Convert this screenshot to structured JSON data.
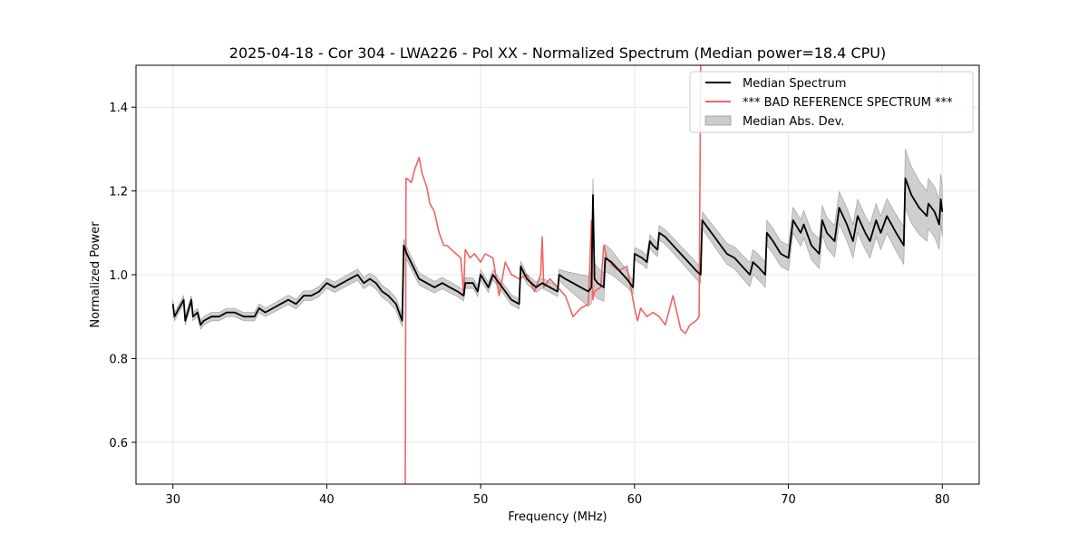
{
  "chart_data": {
    "type": "line",
    "title": "2025-04-18 - Cor 304 - LWA226 - Pol XX - Normalized Spectrum (Median power=18.4 CPU)",
    "xlabel": "Frequency (MHz)",
    "ylabel": "Normalized Power",
    "xlim": [
      27.6,
      82.4
    ],
    "ylim": [
      0.5,
      1.5
    ],
    "xticks": [
      30,
      40,
      50,
      60,
      70,
      80
    ],
    "yticks": [
      0.6,
      0.8,
      1.0,
      1.2,
      1.4
    ],
    "grid": true,
    "legend_location": "top-right",
    "series": [
      {
        "name": "Median Spectrum",
        "color": "#000000",
        "style": "line",
        "x": [
          30.0,
          30.1,
          30.7,
          30.8,
          31.2,
          31.3,
          31.6,
          31.8,
          32.0,
          32.5,
          33.0,
          33.5,
          34.0,
          34.6,
          35.3,
          35.6,
          36.0,
          36.5,
          37.0,
          37.5,
          38.0,
          38.5,
          39.0,
          39.5,
          40.0,
          40.5,
          41.0,
          41.5,
          42.0,
          42.4,
          42.8,
          43.2,
          43.6,
          44.0,
          44.5,
          44.9,
          45.0,
          45.1,
          45.2,
          45.6,
          46.0,
          46.5,
          47.0,
          47.5,
          48.0,
          48.5,
          48.9,
          49.0,
          49.5,
          49.8,
          50.0,
          50.5,
          50.8,
          51.2,
          51.6,
          52.0,
          52.5,
          52.6,
          53.0,
          53.3,
          53.6,
          54.0,
          54.5,
          55.0,
          55.1,
          55.5,
          56.0,
          56.5,
          57.0,
          57.2,
          57.3,
          57.4,
          57.6,
          58.0,
          58.1,
          58.5,
          59.0,
          59.5,
          59.9,
          60.0,
          60.5,
          60.8,
          61.0,
          61.2,
          61.5,
          61.6,
          62.0,
          62.5,
          63.0,
          63.5,
          64.0,
          64.3,
          64.4,
          64.8,
          65.2,
          65.6,
          66.0,
          66.5,
          67.0,
          67.5,
          67.7,
          68.0,
          68.5,
          68.6,
          69.0,
          69.5,
          70.0,
          70.3,
          70.8,
          71.0,
          71.5,
          72.0,
          72.2,
          72.5,
          73.0,
          73.3,
          73.8,
          74.2,
          74.5,
          75.0,
          75.3,
          75.7,
          76.0,
          76.4,
          77.0,
          77.5,
          77.6,
          78.0,
          78.5,
          79.0,
          79.1,
          79.5,
          79.8,
          79.9,
          80.0
        ],
        "y": [
          0.93,
          0.9,
          0.94,
          0.89,
          0.94,
          0.9,
          0.91,
          0.88,
          0.89,
          0.9,
          0.9,
          0.91,
          0.91,
          0.9,
          0.9,
          0.92,
          0.91,
          0.92,
          0.93,
          0.94,
          0.93,
          0.95,
          0.95,
          0.96,
          0.98,
          0.97,
          0.98,
          0.99,
          1.0,
          0.98,
          0.99,
          0.98,
          0.96,
          0.95,
          0.93,
          0.89,
          1.07,
          1.06,
          1.05,
          1.02,
          0.99,
          0.98,
          0.97,
          0.98,
          0.97,
          0.96,
          0.95,
          0.98,
          0.98,
          0.96,
          1.0,
          0.97,
          1.0,
          0.98,
          0.96,
          0.94,
          0.93,
          1.02,
          0.99,
          0.98,
          0.97,
          0.98,
          0.97,
          0.96,
          1.0,
          0.99,
          0.98,
          0.97,
          0.96,
          0.97,
          1.19,
          0.99,
          0.98,
          0.97,
          1.04,
          1.03,
          1.01,
          0.99,
          0.97,
          1.05,
          1.04,
          1.03,
          1.08,
          1.07,
          1.06,
          1.1,
          1.09,
          1.07,
          1.05,
          1.03,
          1.01,
          1.0,
          1.13,
          1.11,
          1.09,
          1.07,
          1.05,
          1.04,
          1.02,
          1.0,
          1.03,
          1.02,
          1.0,
          1.1,
          1.08,
          1.05,
          1.04,
          1.13,
          1.1,
          1.12,
          1.07,
          1.05,
          1.13,
          1.1,
          1.08,
          1.16,
          1.12,
          1.08,
          1.14,
          1.1,
          1.08,
          1.13,
          1.1,
          1.14,
          1.1,
          1.07,
          1.23,
          1.19,
          1.16,
          1.14,
          1.17,
          1.15,
          1.12,
          1.18,
          1.15
        ]
      },
      {
        "name": "*** BAD REFERENCE SPECTRUM ***",
        "color": "#f06464",
        "style": "line",
        "x": [
          45.1,
          45.15,
          45.2,
          45.5,
          45.7,
          46.0,
          46.2,
          46.5,
          46.7,
          47.0,
          47.3,
          47.6,
          47.8,
          48.1,
          48.4,
          48.7,
          48.9,
          48.95,
          49.0,
          49.3,
          49.6,
          50.0,
          50.3,
          50.8,
          51.2,
          51.6,
          52.0,
          52.5,
          53.0,
          53.5,
          53.9,
          54.0,
          54.1,
          54.5,
          55.0,
          55.5,
          56.0,
          56.5,
          57.0,
          57.2,
          57.3,
          57.4,
          57.8,
          58.0,
          58.2,
          58.6,
          59.0,
          59.5,
          60.0,
          60.2,
          60.4,
          60.8,
          61.2,
          61.6,
          62.0,
          62.5,
          63.0,
          63.3,
          63.6,
          64.0,
          64.2,
          64.3
        ],
        "y": [
          0.5,
          1.23,
          1.23,
          1.22,
          1.25,
          1.28,
          1.24,
          1.21,
          1.17,
          1.15,
          1.1,
          1.07,
          1.07,
          1.06,
          1.05,
          1.04,
          0.95,
          1.02,
          1.06,
          1.04,
          1.05,
          1.03,
          1.05,
          1.04,
          0.95,
          1.03,
          1.0,
          0.99,
          1.0,
          0.96,
          1.0,
          1.09,
          0.97,
          0.99,
          0.97,
          0.95,
          0.9,
          0.92,
          0.93,
          1.13,
          0.94,
          0.96,
          0.97,
          1.07,
          1.04,
          1.02,
          1.01,
          1.02,
          0.92,
          0.89,
          0.92,
          0.9,
          0.91,
          0.9,
          0.88,
          0.95,
          0.87,
          0.86,
          0.88,
          0.89,
          0.9,
          1.5
        ]
      },
      {
        "name": "Median Abs. Dev.",
        "color": "#cccccc",
        "style": "band",
        "x": [
          30.0,
          35.0,
          40.0,
          45.0,
          50.0,
          55.0,
          57.3,
          60.0,
          64.3,
          66.0,
          68.0,
          70.0,
          72.0,
          74.0,
          76.0,
          77.5,
          77.6,
          79.0,
          80.0
        ],
        "spread": [
          0.01,
          0.01,
          0.012,
          0.015,
          0.012,
          0.012,
          0.04,
          0.015,
          0.02,
          0.025,
          0.03,
          0.03,
          0.035,
          0.04,
          0.04,
          0.045,
          0.07,
          0.06,
          0.06
        ]
      }
    ]
  }
}
